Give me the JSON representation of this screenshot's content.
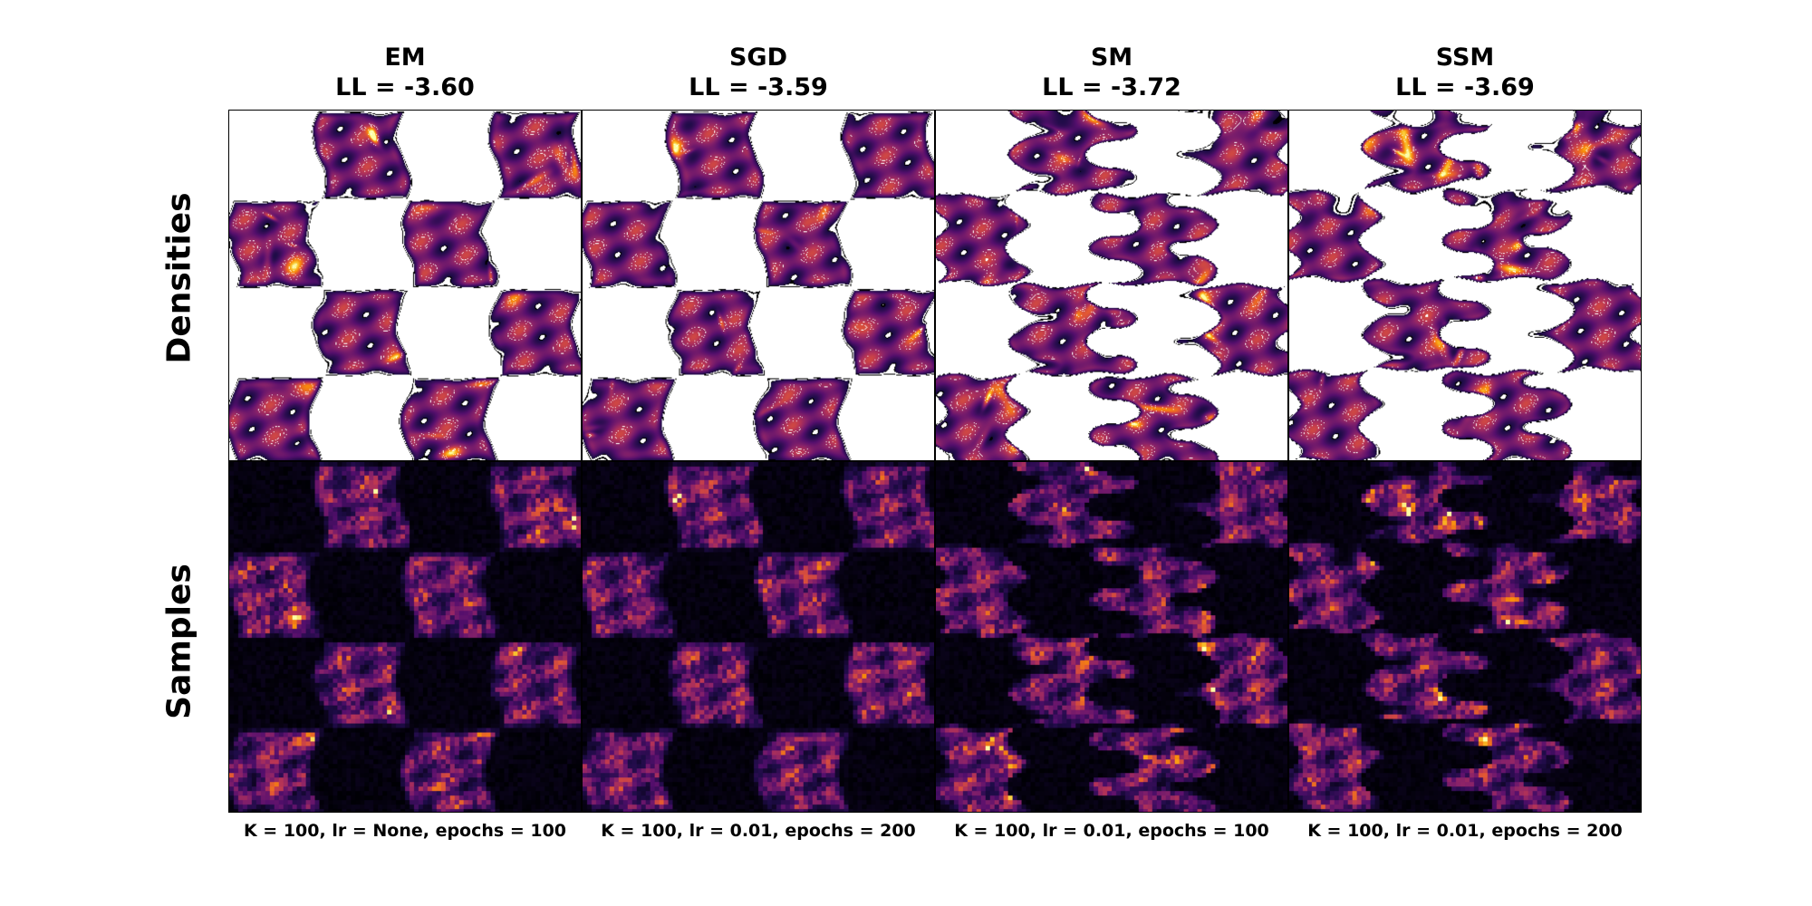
{
  "chart_data": {
    "type": "heatmap",
    "description_rows": [
      "Densities",
      "Samples"
    ],
    "columns": [
      {
        "method": "EM",
        "ll_label": "LL = -3.60",
        "ll": -3.6,
        "footer": "K = 100, lr = None, epochs = 100"
      },
      {
        "method": "SGD",
        "ll_label": "LL = -3.59",
        "ll": -3.59,
        "footer": "K = 100, lr = 0.01, epochs = 200"
      },
      {
        "method": "SM",
        "ll_label": "LL = -3.72",
        "ll": -3.72,
        "footer": "K = 100, lr = 0.01, epochs = 100"
      },
      {
        "method": "SSM",
        "ll_label": "LL = -3.69",
        "ll": -3.69,
        "footer": "K = 100, lr = 0.01, epochs = 200"
      }
    ],
    "rows": [
      {
        "label": "Densities",
        "style": "contour"
      },
      {
        "label": "Samples",
        "style": "histogram"
      }
    ],
    "pattern": "4x4 checkerboard",
    "colormap": "inferno",
    "colors": {
      "contour_line": "#000000",
      "background_white": "#ffffff",
      "dark": "#000004"
    }
  }
}
